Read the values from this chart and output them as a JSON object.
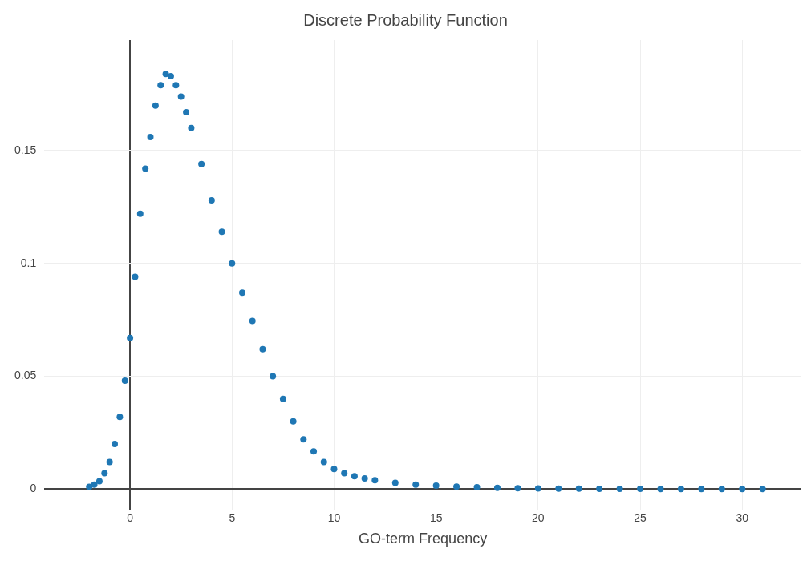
{
  "chart_data": {
    "type": "scatter",
    "title": "Discrete Probability Function",
    "xlabel": "GO-term Frequency",
    "x": [
      -2,
      -1.75,
      -1.5,
      -1.25,
      -1,
      -0.75,
      -0.5,
      -0.25,
      0,
      0.25,
      0.5,
      0.75,
      1,
      1.25,
      1.5,
      1.75,
      2,
      2.25,
      2.5,
      2.75,
      3,
      3.5,
      4,
      4.5,
      5,
      5.5,
      6,
      6.5,
      7,
      7.5,
      8,
      8.5,
      9,
      9.5,
      10,
      10.5,
      11,
      11.5,
      12,
      13,
      14,
      15,
      16,
      17,
      18,
      19,
      20,
      21,
      22,
      23,
      24,
      25,
      26,
      27,
      28,
      29,
      30,
      31
    ],
    "values": [
      0.001,
      0.002,
      0.0035,
      0.007,
      0.012,
      0.02,
      0.032,
      0.048,
      0.067,
      0.094,
      0.122,
      0.142,
      0.156,
      0.17,
      0.179,
      0.184,
      0.183,
      0.179,
      0.174,
      0.167,
      0.16,
      0.144,
      0.128,
      0.114,
      0.1,
      0.087,
      0.0745,
      0.062,
      0.05,
      0.04,
      0.03,
      0.022,
      0.0167,
      0.012,
      0.0089,
      0.007,
      0.0057,
      0.0047,
      0.0039,
      0.0028,
      0.002,
      0.0015,
      0.0011,
      0.0008,
      0.0005,
      0.0004,
      0.0003,
      0.0002,
      0.0002,
      0.0001,
      0.0001,
      0.0001,
      0,
      0,
      0,
      0,
      0,
      0
    ],
    "color": "#1f77b4",
    "marker": "circle",
    "xlim": [
      -4.2,
      32.9
    ],
    "ylim": [
      -0.009,
      0.199
    ],
    "xticks": [
      0,
      5,
      10,
      15,
      20,
      25,
      30
    ],
    "yticks": [
      0,
      0.05,
      {
        "value": 0.1,
        "label": "0.1"
      },
      0.15
    ],
    "grid": true,
    "legend": false
  }
}
